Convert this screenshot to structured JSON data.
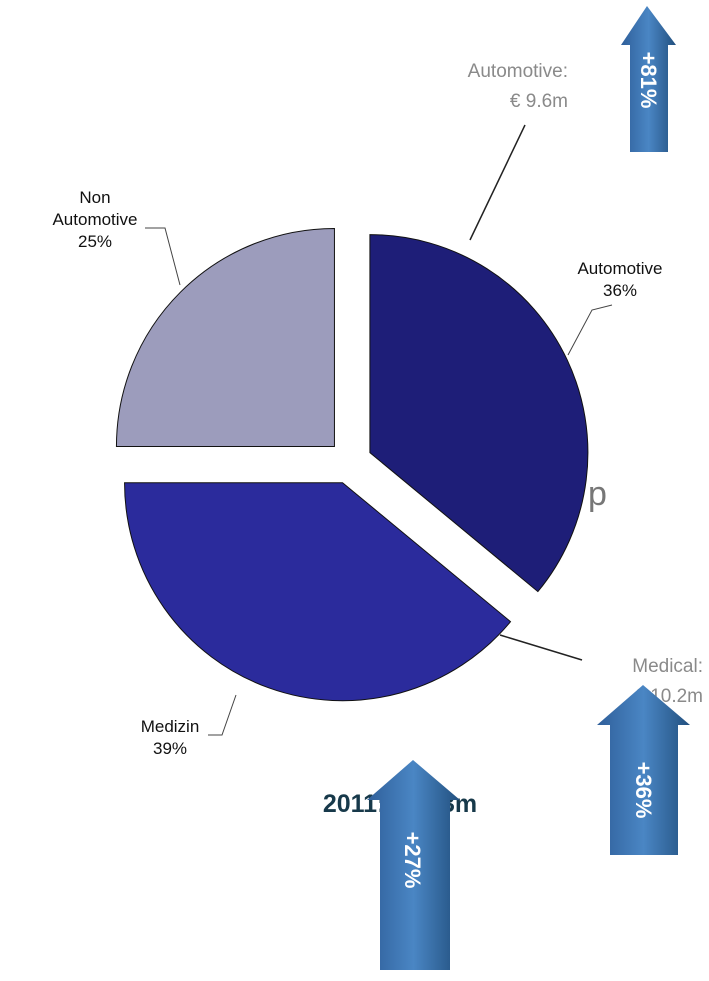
{
  "chart_data": {
    "type": "pie",
    "categories": [
      "Automotive",
      "Medizin",
      "Non Automotive"
    ],
    "values": [
      36,
      39,
      25
    ],
    "value_labels": [
      "36%",
      "39%",
      "25%"
    ],
    "colors": [
      "#1e1e78",
      "#2b2b9c",
      "#9c9cbc"
    ],
    "annotations": {
      "automotive_label": "Automotive:",
      "automotive_value": "€ 9.6m",
      "automotive_growth": "+81%",
      "medical_label": "Medical:",
      "medical_value": "€ 10.2m",
      "medical_growth": "+36%",
      "total": "2011: €26.3m",
      "total_growth": "+27%",
      "edge_text": "p"
    }
  }
}
